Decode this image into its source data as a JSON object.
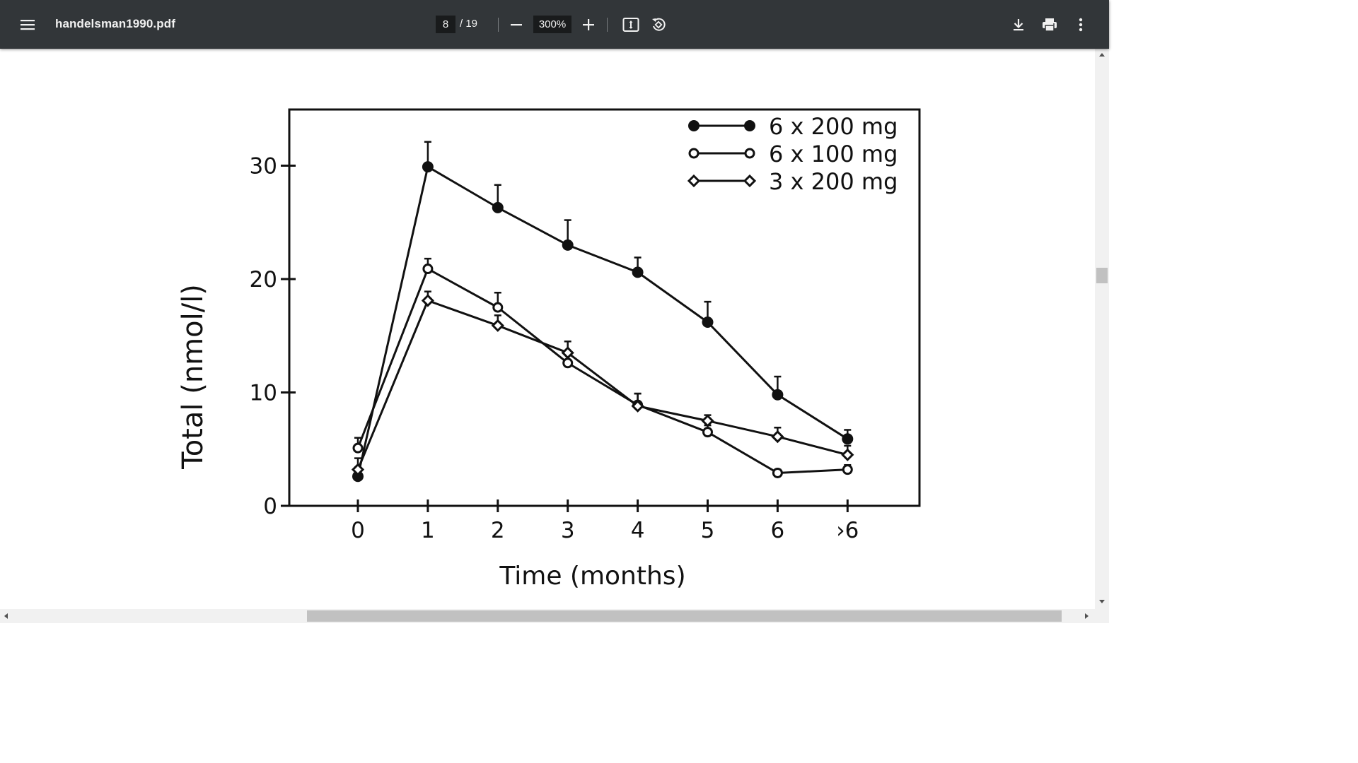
{
  "viewer": {
    "filename": "handelsman1990.pdf",
    "current_page": "8",
    "page_total": "/ 19",
    "zoom": "300%"
  },
  "icons": {
    "menu": "hamburger-menu-icon",
    "zoom_out": "minus-icon",
    "zoom_in": "plus-icon",
    "fit": "fit-to-page-icon",
    "rotate": "rotate-counterclockwise-icon",
    "download": "download-icon",
    "print": "print-icon",
    "more": "more-vertical-icon"
  },
  "chart_data": {
    "type": "line",
    "title": "",
    "xlabel": "Time (months)",
    "ylabel": "Total (nmol/l)",
    "categories": [
      "0",
      "1",
      "2",
      "3",
      "4",
      "5",
      "6",
      ">6"
    ],
    "x_tick_labels": [
      "0",
      "1",
      "2",
      "3",
      "4",
      "5",
      "6",
      "›6"
    ],
    "y_ticks": [
      "0",
      "10",
      "20",
      "30"
    ],
    "ylim": [
      0,
      35
    ],
    "grid": false,
    "legend_position": "top-right",
    "series": [
      {
        "name": "6 x 200 mg",
        "marker": "filled-circle",
        "values": [
          2.6,
          29.9,
          26.3,
          23.0,
          20.6,
          16.2,
          9.8,
          5.9
        ],
        "error_upper": [
          3.4,
          32.1,
          28.3,
          25.2,
          21.9,
          18.0,
          11.4,
          6.7
        ]
      },
      {
        "name": "6 x 100 mg",
        "marker": "open-circle",
        "values": [
          5.1,
          20.9,
          17.5,
          12.6,
          8.9,
          6.5,
          2.9,
          3.2
        ],
        "error_upper": [
          6.0,
          21.8,
          18.8,
          13.4,
          9.9,
          7.1,
          3.2,
          3.6
        ]
      },
      {
        "name": "3 x 200 mg",
        "marker": "open-diamond",
        "values": [
          3.2,
          18.1,
          15.9,
          13.5,
          8.8,
          7.5,
          6.1,
          4.5
        ],
        "error_upper": [
          4.2,
          18.9,
          16.8,
          14.5,
          9.9,
          8.0,
          6.9,
          5.3
        ]
      }
    ]
  }
}
